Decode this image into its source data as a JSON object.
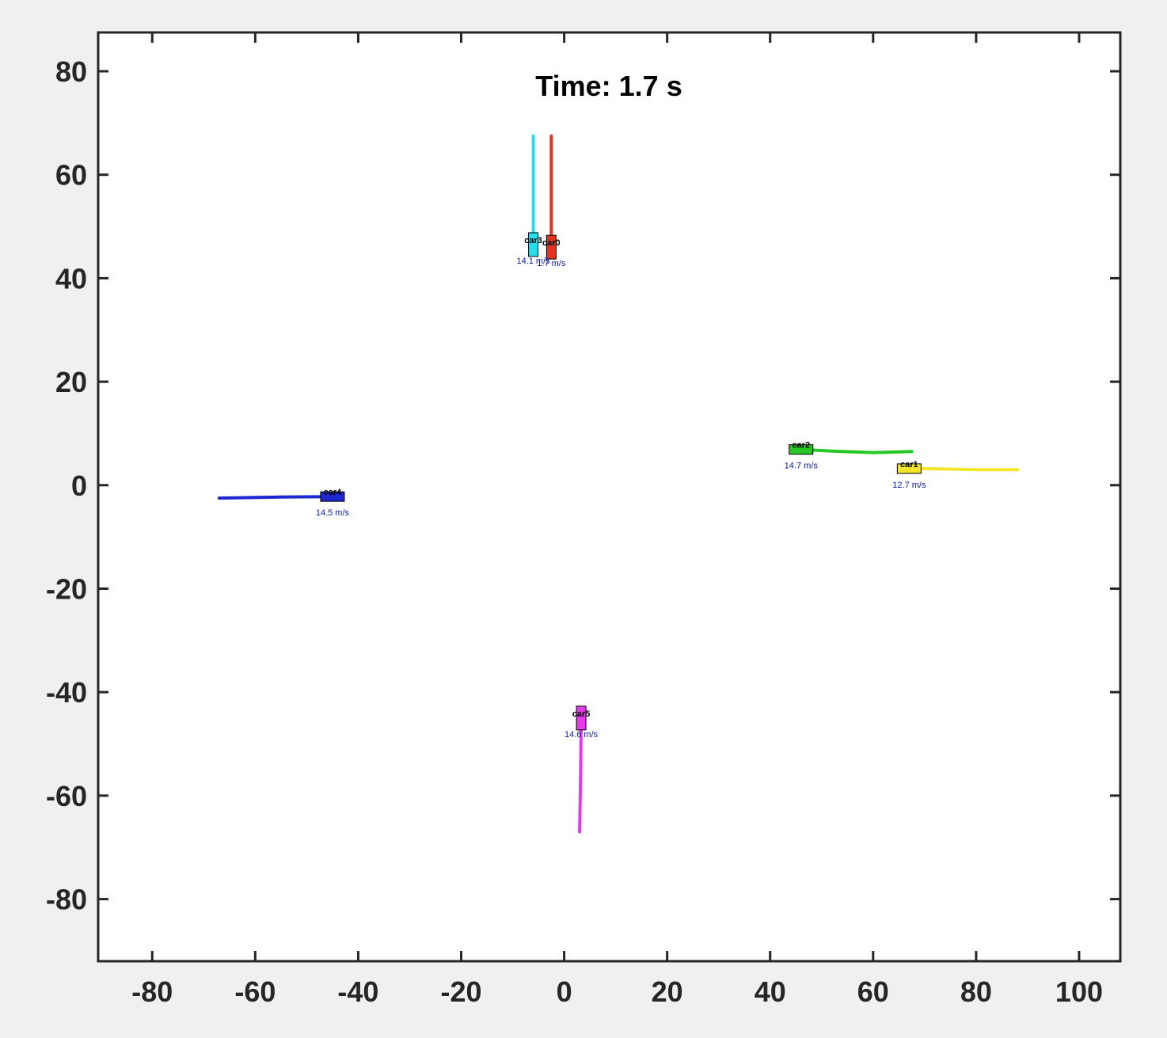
{
  "chart_data": {
    "type": "scatter",
    "title": "Time: 1.7 s",
    "xlim": [
      -90.5,
      108
    ],
    "ylim": [
      -92,
      87.5
    ],
    "xticks": [
      -80,
      -60,
      -40,
      -20,
      0,
      20,
      40,
      60,
      80,
      100
    ],
    "yticks": [
      80,
      60,
      40,
      20,
      0,
      -20,
      -40,
      -60,
      -80
    ],
    "xtick_labels": [
      "-80",
      "-60",
      "-40",
      "-20",
      "0",
      "20",
      "40",
      "60",
      "80",
      "100"
    ],
    "ytick_labels": [
      "80",
      "60",
      "40",
      "20",
      "0",
      "-20",
      "-40",
      "-60",
      "-80"
    ],
    "grid": false,
    "series": [
      {
        "name": "car0",
        "speed_label": "1.7 m/s",
        "color": "#e8321e",
        "trail": [
          [
            -2.5,
            67.5
          ],
          [
            -2.5,
            55
          ],
          [
            -2.5,
            46
          ]
        ],
        "pos": [
          -2.5,
          46
        ],
        "heading": "vertical"
      },
      {
        "name": "car1",
        "speed_label": "12.7 m/s",
        "color": "#f2e62a",
        "trail": [
          [
            88,
            3
          ],
          [
            80,
            3
          ],
          [
            70,
            3.2
          ],
          [
            67,
            3.2
          ]
        ],
        "pos": [
          67,
          3.2
        ],
        "heading": "horizontal"
      },
      {
        "name": "car2",
        "speed_label": "14.7 m/s",
        "color": "#26c826",
        "trail": [
          [
            67.5,
            6.5
          ],
          [
            60,
            6.3
          ],
          [
            52,
            6.6
          ],
          [
            46,
            6.9
          ]
        ],
        "pos": [
          46,
          6.9
        ],
        "heading": "horizontal"
      },
      {
        "name": "car3",
        "speed_label": "14.1 m/s",
        "color": "#2adcea",
        "trail": [
          [
            -6,
            67.5
          ],
          [
            -6,
            55
          ],
          [
            -6,
            46.5
          ]
        ],
        "pos": [
          -6,
          46.5
        ],
        "heading": "vertical"
      },
      {
        "name": "car4",
        "speed_label": "14.5 m/s",
        "color": "#1e28d2",
        "trail": [
          [
            -67,
            -2.5
          ],
          [
            -55,
            -2.3
          ],
          [
            -45,
            -2.2
          ]
        ],
        "pos": [
          -45,
          -2.2
        ],
        "heading": "horizontal"
      },
      {
        "name": "car5",
        "speed_label": "14.6 m/s",
        "color": "#e43ae8",
        "trail": [
          [
            3,
            -67
          ],
          [
            3.2,
            -55
          ],
          [
            3.3,
            -45
          ]
        ],
        "pos": [
          3.3,
          -45
        ],
        "heading": "vertical"
      }
    ]
  }
}
